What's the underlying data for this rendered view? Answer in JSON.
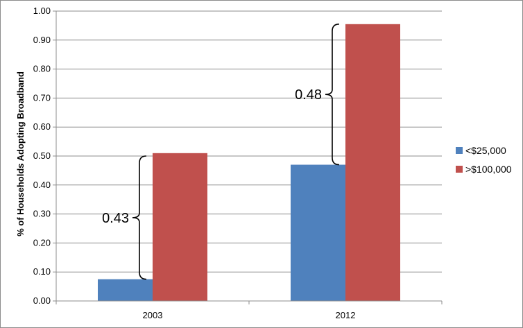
{
  "chart_data": {
    "type": "bar",
    "title": "",
    "xlabel": "",
    "ylabel": "% of Households Adopting Broadband",
    "categories": [
      "2003",
      "2012"
    ],
    "series": [
      {
        "name": "<$25,000",
        "values": [
          0.075,
          0.47
        ],
        "color": "#4f81bd"
      },
      {
        "name": ">$100,000",
        "values": [
          0.51,
          0.955
        ],
        "color": "#c0504d"
      }
    ],
    "ylim": [
      0,
      1.0
    ],
    "yticks": [
      "0.00",
      "0.10",
      "0.20",
      "0.30",
      "0.40",
      "0.50",
      "0.60",
      "0.70",
      "0.80",
      "0.90",
      "1.00"
    ],
    "grid": true,
    "legend": "right",
    "annotations": [
      {
        "text": "0.43",
        "category": "2003",
        "from": 0.075,
        "to": 0.5
      },
      {
        "text": "0.48",
        "category": "2012",
        "from": 0.47,
        "to": 0.955
      }
    ]
  }
}
